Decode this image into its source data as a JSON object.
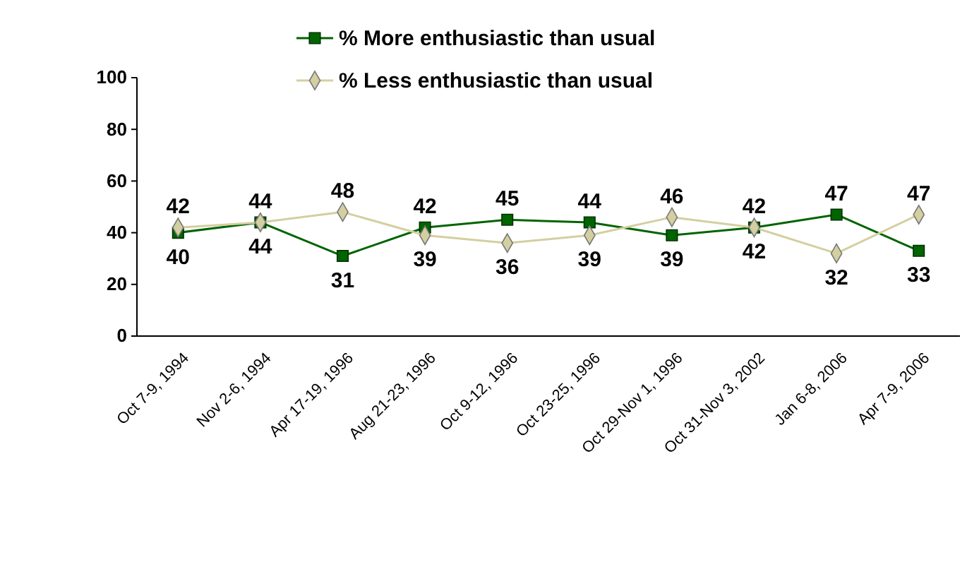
{
  "chart_data": {
    "type": "line",
    "categories": [
      "Oct 7-9, 1994",
      "Nov 2-6, 1994",
      "Apr 17-19, 1996",
      "Aug 21-23, 1996",
      "Oct 9-12, 1996",
      "Oct 23-25, 1996",
      "Oct 29-Nov 1, 1996",
      "Oct 31-Nov 3, 2002",
      "Jan 6-8, 2006",
      "Apr 7-9, 2006"
    ],
    "series": [
      {
        "name": "% More enthusiastic than usual",
        "color": "#006400",
        "marker": "square",
        "values": [
          40,
          44,
          31,
          42,
          45,
          44,
          39,
          42,
          47,
          33
        ]
      },
      {
        "name": "% Less enthusiastic than usual",
        "color": "#d4cfa0",
        "marker": "diamond",
        "values": [
          42,
          44,
          48,
          39,
          36,
          39,
          46,
          42,
          32,
          47
        ]
      }
    ],
    "ylim": [
      0,
      100
    ],
    "yticks": [
      0,
      20,
      40,
      60,
      80,
      100
    ],
    "grid": false,
    "legend": "top",
    "data_labels": true
  }
}
